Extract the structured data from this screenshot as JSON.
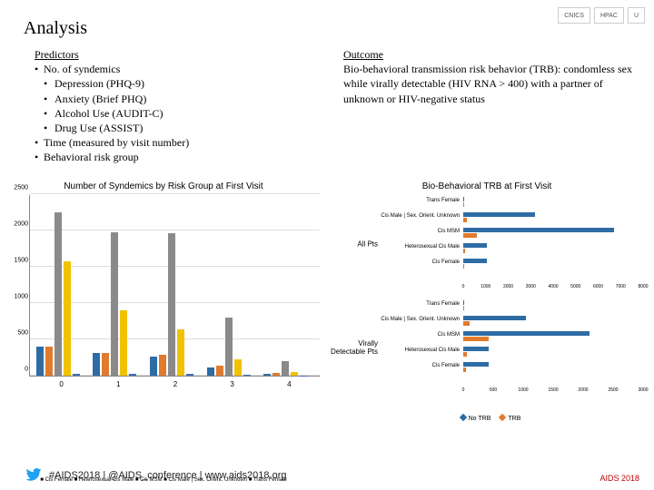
{
  "title": "Analysis",
  "logos": [
    "CNICS",
    "HPAC",
    "U"
  ],
  "predictors": {
    "heading": "Predictors",
    "items": [
      "No. of syndemics",
      "Time (measured by visit number)",
      "Behavioral risk group"
    ],
    "sub": [
      "Depression (PHQ-9)",
      "Anxiety (Brief PHQ)",
      "Alcohol Use (AUDIT-C)",
      "Drug Use (ASSIST)"
    ]
  },
  "outcome": {
    "heading": "Outcome",
    "text": "Bio-behavioral transmission risk behavior (TRB): condomless sex while virally detectable (HIV RNA > 400) with a partner of unknown or HIV-negative status"
  },
  "left_chart": {
    "title": "Number of Syndemics by Risk Group at First Visit",
    "type": "grouped-bar",
    "ymax": 2500,
    "ytick": 500,
    "categories": [
      "0",
      "1",
      "2",
      "3",
      "4"
    ],
    "series": [
      {
        "name": "Cis Female",
        "color": "#2e6ca4"
      },
      {
        "name": "Heterosexual Cis Male",
        "color": "#e07b2e"
      },
      {
        "name": "Cis MSM",
        "color": "#8a8a8a"
      },
      {
        "name": "Cis Male | Sex. Orient. Unknown",
        "color": "#f2c200"
      },
      {
        "name": "Trans Female",
        "color": "#3d6db5"
      }
    ],
    "values": [
      [
        400,
        400,
        2250,
        1580,
        30
      ],
      [
        310,
        310,
        1980,
        900,
        30
      ],
      [
        260,
        290,
        1960,
        640,
        25
      ],
      [
        110,
        140,
        800,
        230,
        15
      ],
      [
        25,
        40,
        200,
        50,
        5
      ]
    ],
    "legend_text": "■ Cis Female ■ Heterosexual Cis Male ■ Cis MSM ■ Cis Male | Sex. Orient. Unknown ■ Trans Female"
  },
  "right_chart": {
    "title": "Bio-Behavioral TRB at First Visit",
    "type": "horizontal-bar-panels",
    "row_labels": [
      "Trans Female",
      "Cis Male | Sex. Orient. Unknown",
      "Cis MSM",
      "Heterosexual Cis Male",
      "Cis Female"
    ],
    "panels": [
      {
        "label": "All Pts",
        "xmax": 8000,
        "xtick": 1000,
        "no_trb": [
          50,
          3200,
          6700,
          1050,
          1050
        ],
        "trb": [
          15,
          150,
          600,
          90,
          60
        ],
        "color_no": "#2e6ca4",
        "color_trb": "#e07b2e"
      },
      {
        "label": "Virally Detectable Pts",
        "xmax": 3000,
        "xtick": 500,
        "no_trb": [
          20,
          1050,
          2100,
          420,
          420
        ],
        "trb": [
          8,
          100,
          430,
          60,
          40
        ],
        "color_no": "#2e6ca4",
        "color_trb": "#e07b2e"
      }
    ],
    "legend": {
      "no": "No TRB",
      "trb": "TRB",
      "color_no": "#2e6ca4",
      "color_trb": "#e07b2e"
    }
  },
  "footer": {
    "text": "#AIDS2018 | @AIDS_conference | www.aids2018.org",
    "logo": "AIDS 2018",
    "twitter_color": "#1da1f2"
  }
}
